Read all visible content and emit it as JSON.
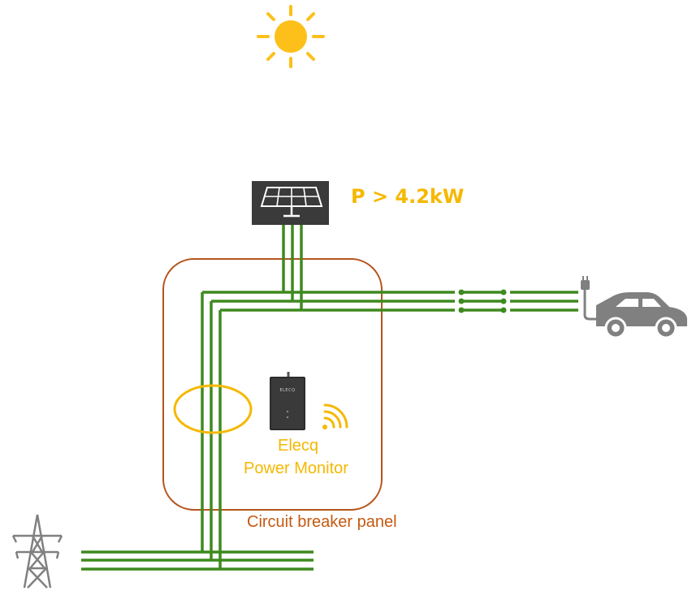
{
  "colors": {
    "sun": "#FDC01A",
    "wire": "#3E8A1E",
    "panel_border": "#B5541C",
    "label_gold": "#F5B800",
    "label_orange": "#C55A11",
    "device": "#3A3A3A",
    "car": "#808080",
    "pylon": "#808080"
  },
  "labels": {
    "power": "P > 4.2kW",
    "monitor_line1": "Elecq",
    "monitor_line2": "Power Monitor",
    "panel": "Circuit breaker panel",
    "device_brand": "ELECQ"
  },
  "icons": [
    "sun-icon",
    "solar-panel-icon",
    "power-monitor-device-icon",
    "wifi-signal-icon",
    "ev-plug-icon",
    "car-icon",
    "transmission-tower-icon"
  ]
}
